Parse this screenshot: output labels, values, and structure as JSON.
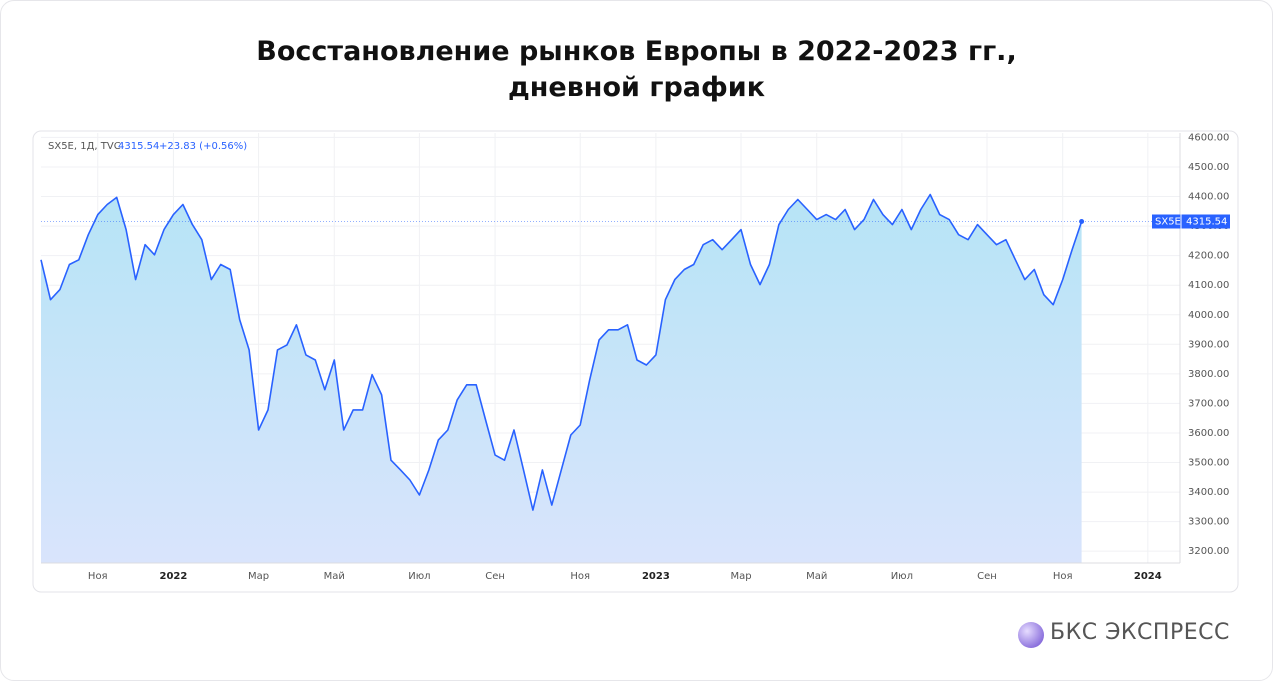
{
  "chart_data": {
    "type": "line",
    "title": "Восстановление рынков Европы в 2022-2023 гг.,\nдневной график",
    "symbol_info": "SX5E, 1Д, TVC",
    "change": "+23.83 (+0.56%)",
    "price_tag_symbol": "SX5E",
    "categories": [
      null,
      null,
      null,
      null,
      null,
      null,
      "Ноя",
      null,
      null,
      null,
      null,
      null,
      null,
      null,
      "2022",
      null,
      null,
      null,
      null,
      null,
      null,
      null,
      null,
      "Мар",
      null,
      null,
      null,
      null,
      null,
      null,
      null,
      "Май",
      null,
      null,
      null,
      null,
      null,
      null,
      null,
      null,
      "Июл",
      null,
      null,
      null,
      null,
      null,
      null,
      null,
      "Сен",
      null,
      null,
      null,
      null,
      null,
      null,
      null,
      null,
      "Ноя",
      null,
      null,
      null,
      null,
      null,
      null,
      null,
      "2023",
      null,
      null,
      null,
      null,
      null,
      null,
      null,
      null,
      "Мар",
      null,
      null,
      null,
      null,
      null,
      null,
      null,
      "Май",
      null,
      null,
      null,
      null,
      null,
      null,
      null,
      null,
      "Июл",
      null,
      null,
      null,
      null,
      null,
      null,
      null,
      null,
      "Сен",
      null,
      null,
      null,
      null,
      null,
      null,
      null,
      "Ноя",
      null,
      null,
      null,
      null,
      null,
      null,
      null,
      null,
      "2024",
      null,
      null,
      null
    ],
    "series": [
      {
        "name": "SX5E",
        "color": "#2962ff",
        "values": [
          4186,
          4051,
          4085,
          4170,
          4186,
          4271,
          4339,
          4373,
          4397,
          4288,
          4119,
          4237,
          4203,
          4288,
          4339,
          4373,
          4305,
          4254,
          4119,
          4170,
          4153,
          3983,
          3881,
          3610,
          3678,
          3881,
          3898,
          3966,
          3864,
          3847,
          3746,
          3847,
          3610,
          3678,
          3678,
          3797,
          3729,
          3508,
          3475,
          3441,
          3390,
          3475,
          3576,
          3610,
          3712,
          3763,
          3763,
          3644,
          3525,
          3508,
          3610,
          3475,
          3339,
          3475,
          3356,
          3475,
          3593,
          3627,
          3780,
          3915,
          3949,
          3949,
          3966,
          3847,
          3830,
          3864,
          4051,
          4119,
          4153,
          4170,
          4237,
          4254,
          4220,
          4254,
          4288,
          4170,
          4102,
          4170,
          4305,
          4356,
          4390,
          4356,
          4322,
          4339,
          4322,
          4356,
          4288,
          4322,
          4390,
          4339,
          4305,
          4356,
          4288,
          4356,
          4407,
          4339,
          4322,
          4271,
          4254,
          4305,
          4271,
          4237,
          4254,
          4186,
          4119,
          4153,
          4068,
          4034,
          4119,
          4220,
          4315.54,
          null,
          null,
          null,
          null,
          null,
          null,
          null,
          null,
          null,
          null
        ]
      }
    ],
    "ylim": [
      3160,
      4615
    ],
    "yticks": [
      {
        "value": 3200,
        "label": "3200.00"
      },
      {
        "value": 3300,
        "label": "3300.00"
      },
      {
        "value": 3400,
        "label": "3400.00"
      },
      {
        "value": 3500,
        "label": "3500.00"
      },
      {
        "value": 3600,
        "label": "3600.00"
      },
      {
        "value": 3700,
        "label": "3700.00"
      },
      {
        "value": 3800,
        "label": "3800.00"
      },
      {
        "value": 3900,
        "label": "3900.00"
      },
      {
        "value": 4000,
        "label": "4000.00"
      },
      {
        "value": 4100,
        "label": "4100.00"
      },
      {
        "value": 4200,
        "label": "4200.00"
      },
      {
        "value": 4300,
        "label": "4300.00"
      },
      {
        "value": 4400,
        "label": "4400.00"
      },
      {
        "value": 4500,
        "label": "4500.00"
      },
      {
        "value": 4600,
        "label": "4600.00"
      }
    ],
    "grid": true
  },
  "brand": "БКС ЭКСПРЕСС"
}
